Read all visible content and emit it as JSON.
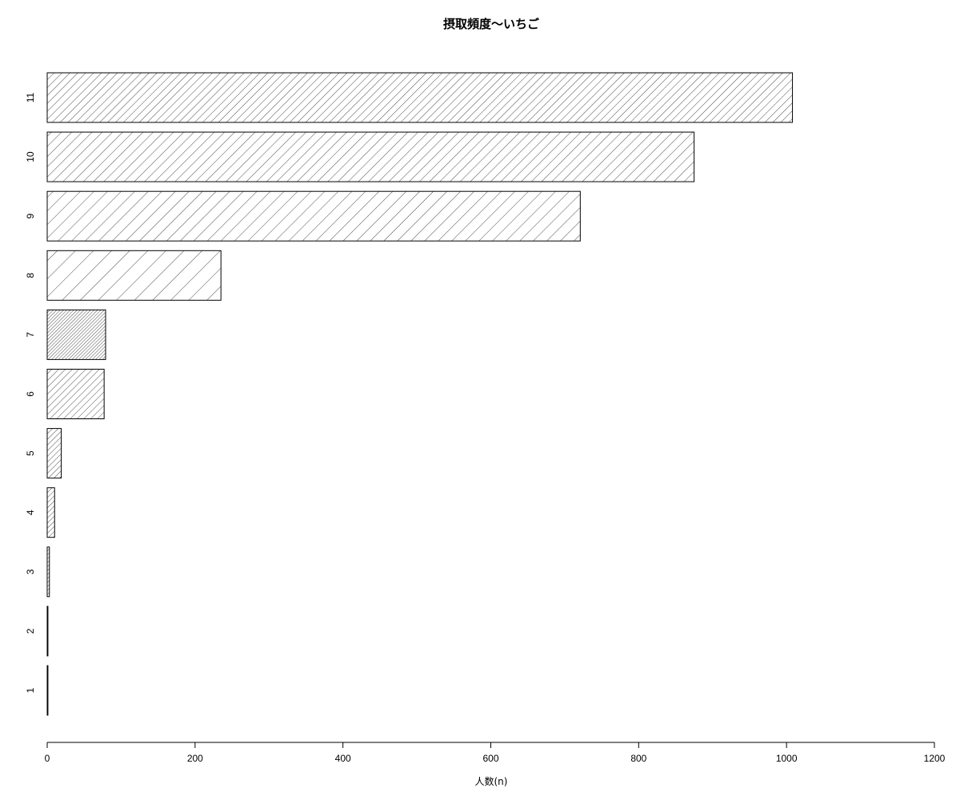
{
  "chart_data": {
    "type": "bar",
    "orientation": "horizontal",
    "title": "摂取頻度〜いちご",
    "xlabel": "人数(n)",
    "ylabel": "",
    "xlim": [
      0,
      1200
    ],
    "x_ticks": [
      "0",
      "200",
      "400",
      "600",
      "800",
      "1000",
      "1200"
    ],
    "categories": [
      "1",
      "2",
      "3",
      "4",
      "5",
      "6",
      "7",
      "8",
      "9",
      "10",
      "11"
    ],
    "values": [
      1,
      1,
      3,
      10,
      19,
      77,
      79,
      235,
      721,
      875,
      1008
    ],
    "fill": "hatched",
    "bar_color": "#000000",
    "grid": false,
    "legend": "none"
  }
}
